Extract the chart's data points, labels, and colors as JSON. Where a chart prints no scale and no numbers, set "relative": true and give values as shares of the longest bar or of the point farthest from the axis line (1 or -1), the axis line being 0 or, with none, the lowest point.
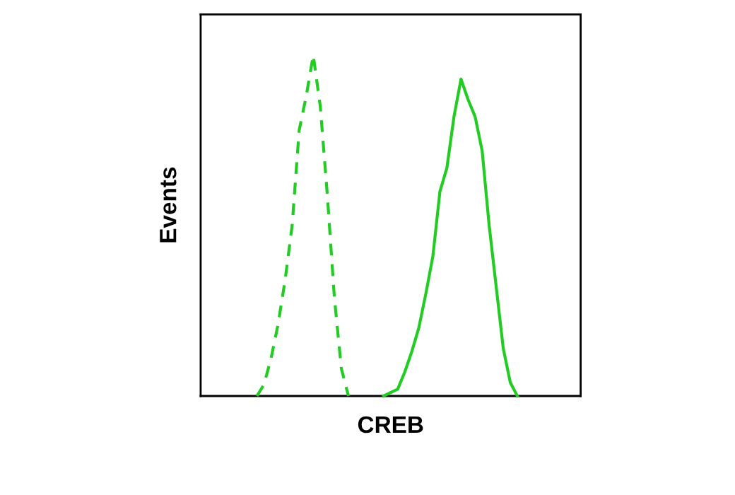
{
  "chart_data": {
    "type": "line",
    "relative": true,
    "xlabel": "CREB",
    "ylabel": "Events",
    "categories": [
      null,
      null,
      null,
      null,
      null,
      null,
      null,
      null,
      null,
      null,
      null,
      null,
      null,
      null,
      null,
      null,
      null,
      null,
      null,
      null,
      null,
      null,
      null,
      null,
      null,
      null,
      null,
      null,
      null,
      null,
      null,
      null,
      null,
      null,
      null,
      null,
      null,
      null,
      null,
      null,
      null,
      null,
      null,
      null,
      null,
      null,
      null,
      null,
      null,
      null,
      null,
      null,
      null,
      null,
      null
    ],
    "series": [
      {
        "color": "#22cc22",
        "line_style": "dashed",
        "values": [
          null,
          null,
          null,
          null,
          null,
          null,
          null,
          null,
          0,
          0.034,
          0.11,
          0.21,
          0.34,
          0.5,
          0.78,
          0.88,
          1.0,
          0.85,
          0.59,
          0.29,
          0.08,
          0,
          null,
          null,
          null,
          null,
          null,
          null,
          null,
          null,
          null,
          null,
          null,
          null,
          null,
          null,
          null,
          null,
          null,
          null,
          null,
          null,
          null,
          null,
          null,
          null,
          null,
          null,
          null,
          null,
          null,
          null,
          null,
          null,
          null
        ]
      },
      {
        "color": "#22cc22",
        "line_style": "solid",
        "values": [
          null,
          null,
          null,
          null,
          null,
          null,
          null,
          null,
          null,
          null,
          null,
          null,
          null,
          null,
          null,
          null,
          null,
          null,
          null,
          null,
          null,
          null,
          null,
          null,
          null,
          null,
          0,
          0.01,
          0.02,
          0.07,
          0.13,
          0.2,
          0.3,
          0.41,
          0.6,
          0.67,
          0.82,
          0.93,
          0.87,
          0.82,
          0.72,
          0.5,
          0.32,
          0.14,
          0.04,
          0,
          null,
          null,
          null,
          null,
          null,
          null,
          null,
          null,
          null
        ]
      }
    ]
  }
}
